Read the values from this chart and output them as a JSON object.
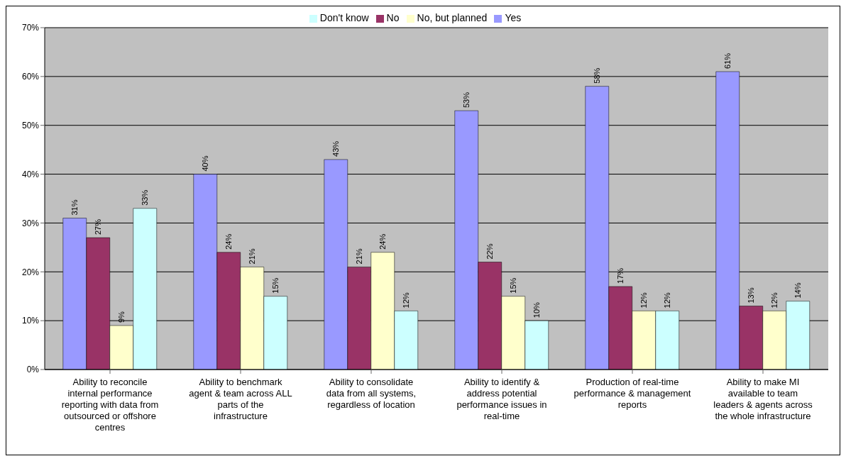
{
  "chart_data": {
    "type": "bar",
    "categories": [
      "Ability to reconcile internal performance reporting with data from outsourced or offshore centres",
      "Ability to benchmark agent & team across ALL parts of the infrastructure",
      "Ability to consolidate data from all systems, regardless of location",
      "Ability to identify & address potential performance issues in real-time",
      "Production of real-time performance & management reports",
      "Ability to make MI available to team leaders & agents across the whole infrastructure"
    ],
    "series": [
      {
        "name": "Yes",
        "color": "#9999ff",
        "values": [
          31,
          40,
          43,
          53,
          58,
          61
        ],
        "value_labels": [
          "31%",
          "40%",
          "43%",
          "53%",
          "58%",
          "61%"
        ]
      },
      {
        "name": "No",
        "color": "#993366",
        "values": [
          27,
          24,
          21,
          22,
          17,
          13
        ],
        "value_labels": [
          "27%",
          "24%",
          "21%",
          "22%",
          "17%",
          "13%"
        ]
      },
      {
        "name": "No, but planned",
        "color": "#ffffcc",
        "values": [
          9,
          21,
          24,
          15,
          12,
          12
        ],
        "value_labels": [
          "9%",
          "21%",
          "24%",
          "15%",
          "12%",
          "12%"
        ]
      },
      {
        "name": "Don't know",
        "color": "#ccffff",
        "values": [
          33,
          15,
          12,
          10,
          12,
          14
        ],
        "value_labels": [
          "33%",
          "15%",
          "12%",
          "10%",
          "12%",
          "14%"
        ]
      }
    ],
    "ylim": [
      0,
      70
    ],
    "yticks": [
      {
        "value": 0,
        "label": "0%"
      },
      {
        "value": 10,
        "label": "10%"
      },
      {
        "value": 20,
        "label": "20%"
      },
      {
        "value": 30,
        "label": "30%"
      },
      {
        "value": 40,
        "label": "40%"
      },
      {
        "value": 50,
        "label": "50%"
      },
      {
        "value": 60,
        "label": "60%"
      },
      {
        "value": 70,
        "label": "70%"
      }
    ],
    "grid": "y",
    "legend": "top"
  }
}
